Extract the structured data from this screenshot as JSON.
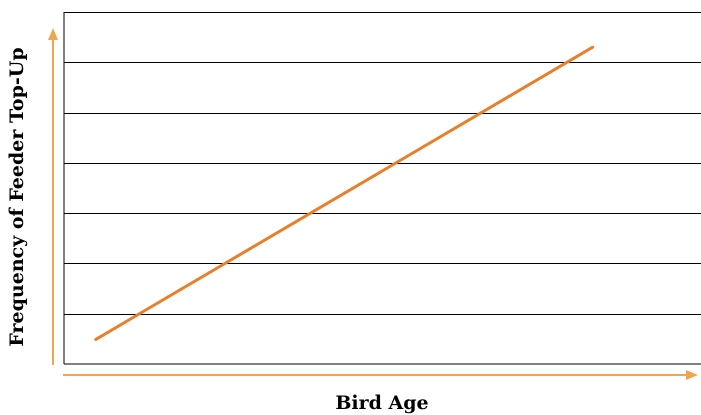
{
  "chart_data": {
    "type": "line",
    "title": "",
    "xlabel": "Bird Age",
    "ylabel": "Frequency of Feeder Top-Up",
    "grid": true,
    "gridline_count": 7,
    "legend": "none",
    "x_ticks": [],
    "y_ticks": [],
    "series": [
      {
        "x": [
          0.05,
          0.83
        ],
        "y": [
          0.07,
          0.9
        ]
      }
    ],
    "xlim": [
      0,
      1
    ],
    "ylim": [
      0,
      1
    ],
    "colors": {
      "line": "#e87f2a",
      "arrows": "#f0a54e",
      "grid": "#000000",
      "frame": "#000000"
    }
  }
}
